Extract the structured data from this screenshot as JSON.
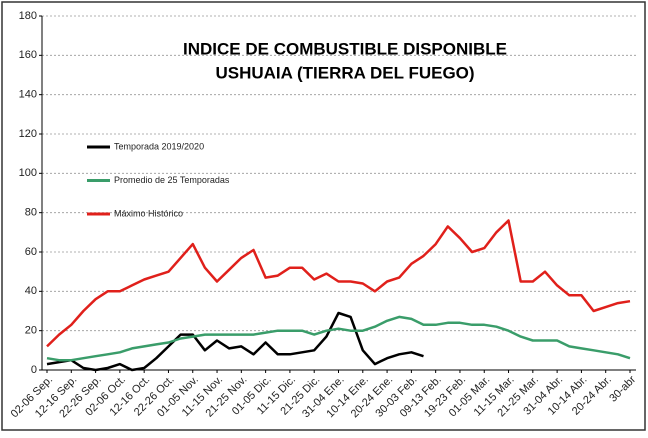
{
  "chart_data": {
    "type": "line",
    "title": "INDICE DE COMBUSTIBLE DISPONIBLE",
    "subtitle": "USHUAIA (TIERRA DEL FUEGO)",
    "categories": [
      "02-06 Sep.",
      null,
      "12-16 Sep.",
      null,
      "22-26 Sep.",
      null,
      "02-06 Oct.",
      null,
      "12-16 Oct.",
      null,
      "22-26 Oct.",
      null,
      "01-05 Nov.",
      null,
      "11-15 Nov.",
      null,
      "21-25 Nov.",
      null,
      "01-05 Dic.",
      null,
      "11-15 Dic.",
      null,
      "21-25 Dic.",
      null,
      "31-04 Ene.",
      null,
      "10-14 Ene.",
      null,
      "20-24 Ene.",
      null,
      "30-03 Feb.",
      null,
      "09-13 Feb.",
      null,
      "19-23 Feb.",
      null,
      "01-05 Mar.",
      null,
      "11-15 Mar.",
      null,
      "21-25 Mar.",
      null,
      "31-04 Abr.",
      null,
      "10-14 Abr.",
      null,
      "20-24 Abr.",
      null,
      "30-abr"
    ],
    "series": [
      {
        "name": "Temporada 2019/2020",
        "color": "#000000",
        "values": [
          3,
          4,
          5,
          1,
          0,
          1,
          3,
          0,
          1,
          6,
          12,
          18,
          18,
          10,
          15,
          11,
          12,
          8,
          14,
          8,
          8,
          9,
          10,
          17,
          29,
          27,
          10,
          3,
          6,
          8,
          9,
          7,
          null,
          null,
          null,
          null,
          null,
          null,
          null,
          null,
          null,
          null,
          null,
          null,
          null,
          null,
          null,
          null,
          null
        ]
      },
      {
        "name": "Promedio de 25 Temporadas",
        "color": "#3a9d6a",
        "values": [
          6,
          5,
          5,
          6,
          7,
          8,
          9,
          11,
          12,
          13,
          14,
          16,
          17,
          18,
          18,
          18,
          18,
          18,
          19,
          20,
          20,
          20,
          18,
          20,
          21,
          20,
          20,
          22,
          25,
          27,
          26,
          23,
          23,
          24,
          24,
          23,
          23,
          22,
          20,
          17,
          15,
          15,
          15,
          12,
          11,
          10,
          9,
          8,
          6
        ]
      },
      {
        "name": "Máximo Histórico",
        "color": "#e0201b",
        "values": [
          12,
          18,
          23,
          30,
          36,
          40,
          40,
          43,
          46,
          48,
          50,
          57,
          64,
          52,
          45,
          51,
          57,
          61,
          47,
          48,
          52,
          52,
          46,
          49,
          45,
          45,
          44,
          40,
          45,
          47,
          54,
          58,
          64,
          73,
          67,
          60,
          62,
          70,
          76,
          45,
          45,
          50,
          43,
          38,
          38,
          30,
          32,
          34,
          35
        ]
      }
    ],
    "ylim": [
      0,
      180
    ],
    "yticks": [
      0,
      20,
      40,
      60,
      80,
      100,
      120,
      140,
      160,
      180
    ],
    "grid": true
  }
}
